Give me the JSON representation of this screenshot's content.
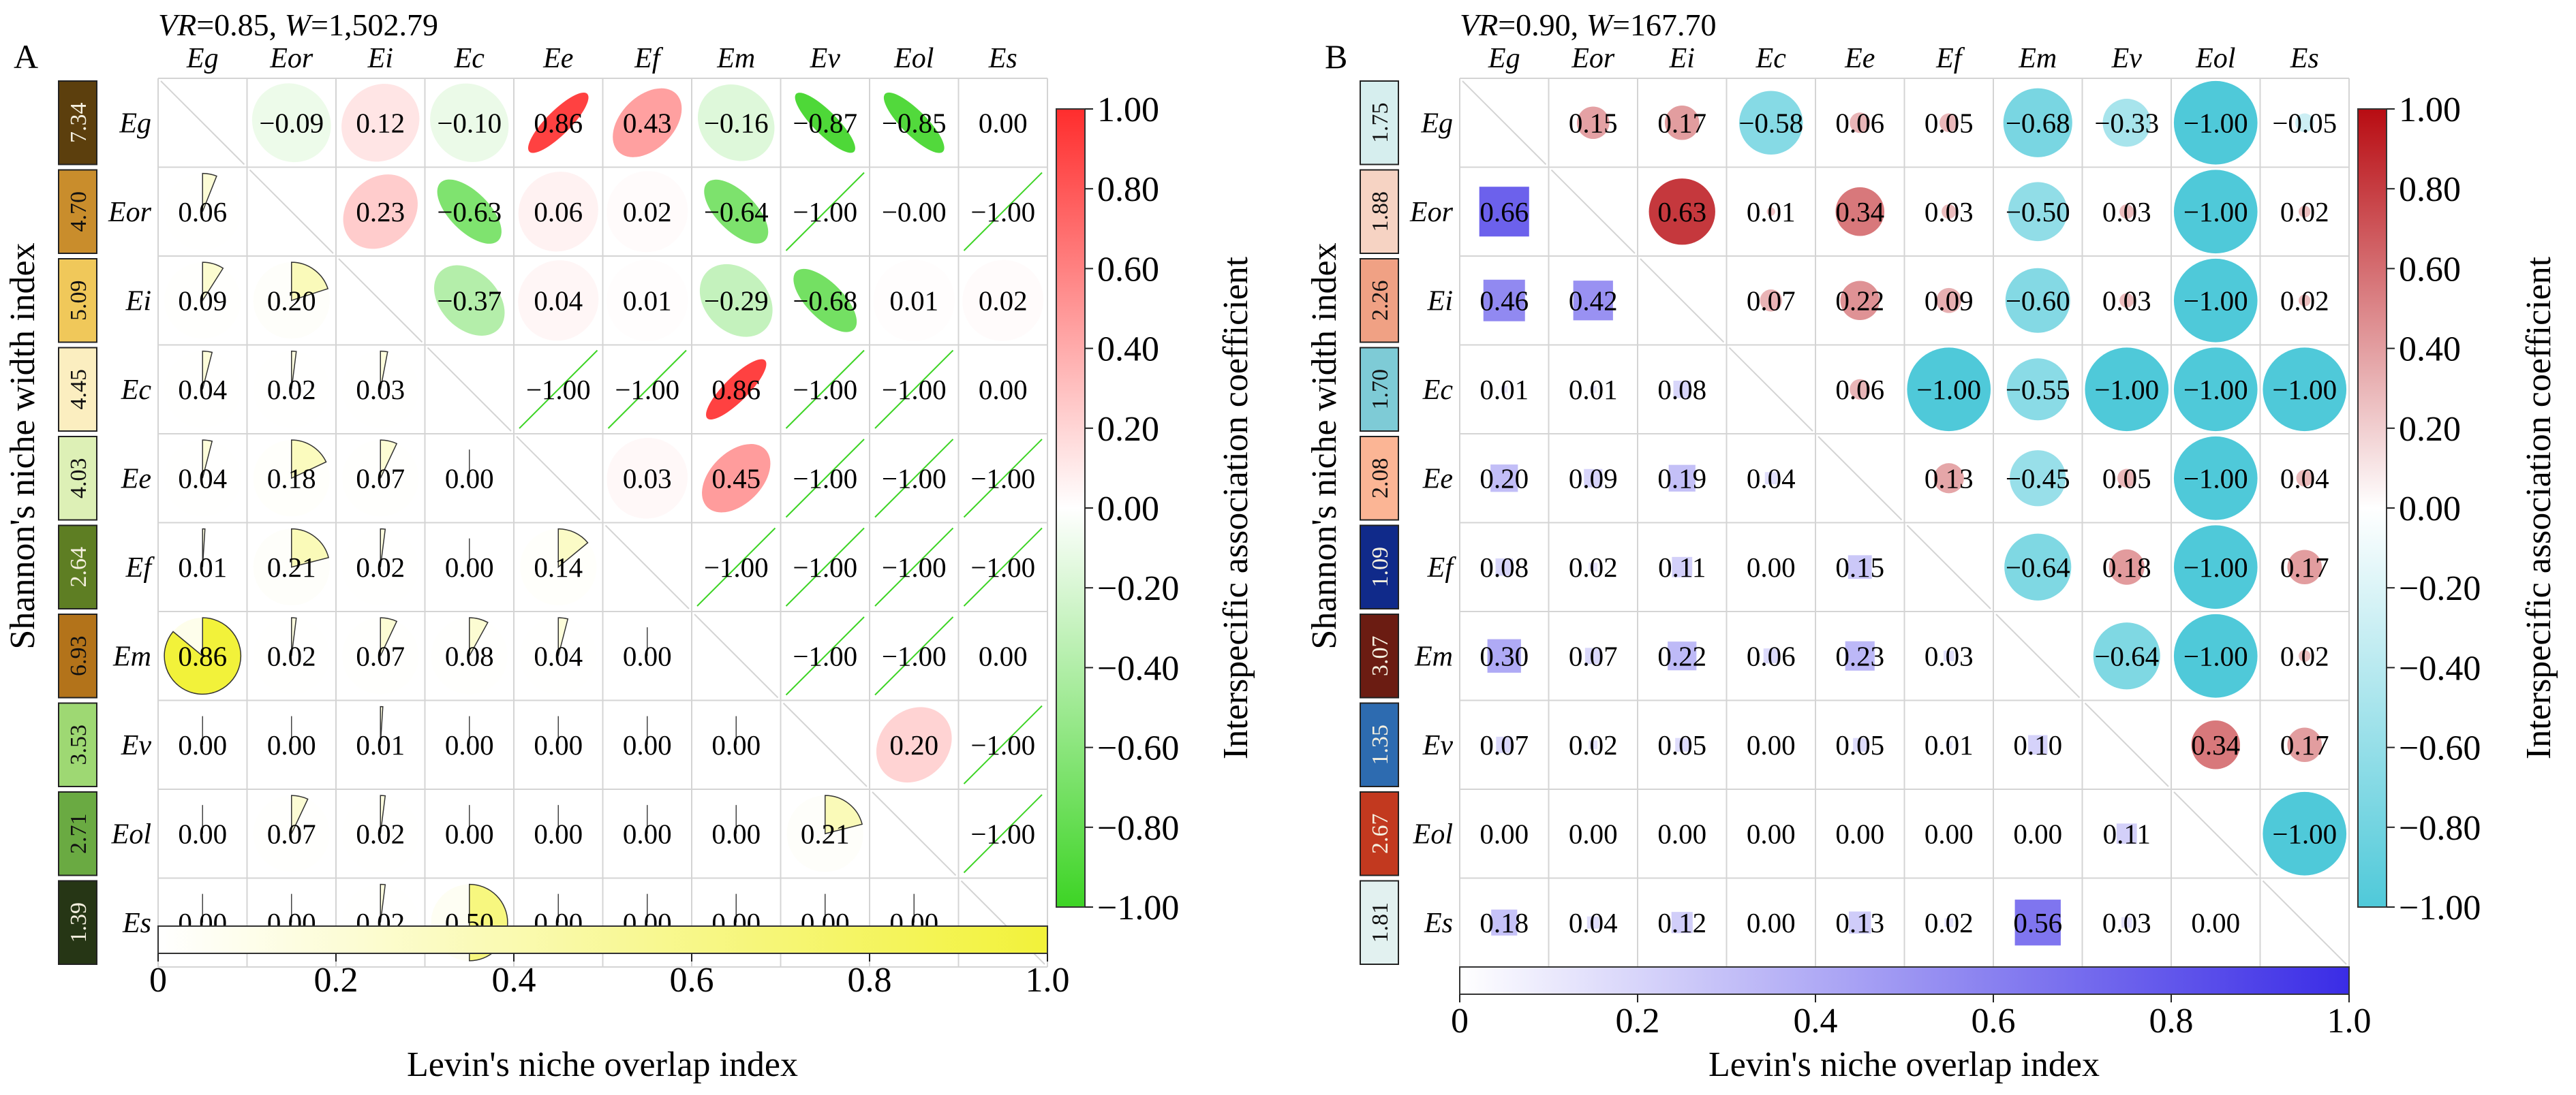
{
  "chart_data": [
    {
      "panel_label": "A",
      "type": "heatmap",
      "header": {
        "vr_label": "VR",
        "vr_value": "0.85",
        "w_label": "W",
        "w_value": "1,502.79"
      },
      "species": [
        "Eg",
        "Eor",
        "Ei",
        "Ec",
        "Ee",
        "Ef",
        "Em",
        "Ev",
        "Eol",
        "Es"
      ],
      "shannon": {
        "label": "Shannon's niche width index",
        "values": [
          "7.34",
          "4.70",
          "5.09",
          "4.45",
          "4.03",
          "2.64",
          "6.93",
          "3.53",
          "2.71",
          "1.39"
        ],
        "colors": [
          "#5c3f0d",
          "#c98d2c",
          "#f0c85a",
          "#fbeec0",
          "#ddf0b6",
          "#5e7e23",
          "#b3731a",
          "#9ed873",
          "#6aaa42",
          "#263615"
        ]
      },
      "association": {
        "label": "Interspecific association coefficient",
        "min": -1,
        "max": 1,
        "ticks": [
          "1.00",
          "0.80",
          "0.60",
          "0.40",
          "0.20",
          "0.00",
          "−0.20",
          "−0.40",
          "−0.60",
          "−0.80",
          "−1.00"
        ],
        "negative_color": "#3dd425",
        "positive_color": "#ff2d2d",
        "upper": [
          [
            "",
            "−0.09",
            "0.12",
            "−0.10",
            "0.86",
            "0.43",
            "−0.16",
            "−0.87",
            "−0.85",
            "0.00"
          ],
          [
            "",
            "",
            "0.23",
            "−0.63",
            "0.06",
            "0.02",
            "−0.64",
            "−1.00",
            "−0.00",
            "−1.00"
          ],
          [
            "",
            "",
            "",
            "−0.37",
            "0.04",
            "0.01",
            "−0.29",
            "−0.68",
            "0.01",
            "0.02"
          ],
          [
            "",
            "",
            "",
            "",
            "−1.00",
            "−1.00",
            "0.86",
            "−1.00",
            "−1.00",
            "0.00"
          ],
          [
            "",
            "",
            "",
            "",
            "",
            "0.03",
            "0.45",
            "−1.00",
            "−1.00",
            "−1.00"
          ],
          [
            "",
            "",
            "",
            "",
            "",
            "",
            "−1.00",
            "−1.00",
            "−1.00",
            "−1.00"
          ],
          [
            "",
            "",
            "",
            "",
            "",
            "",
            "",
            "−1.00",
            "−1.00",
            "0.00"
          ],
          [
            "",
            "",
            "",
            "",
            "",
            "",
            "",
            "",
            "0.20",
            "−1.00"
          ],
          [
            "",
            "",
            "",
            "",
            "",
            "",
            "",
            "",
            "",
            "−1.00"
          ],
          [
            "",
            "",
            "",
            "",
            "",
            "",
            "",
            "",
            "",
            ""
          ]
        ]
      },
      "overlap": {
        "label": "Levin's niche overlap index",
        "min": 0,
        "max": 1,
        "ticks": [
          "0",
          "0.2",
          "0.4",
          "0.6",
          "0.8",
          "1.0"
        ],
        "color": "#f2f23a",
        "lower": [
          [],
          [
            "0.06"
          ],
          [
            "0.09",
            "0.20"
          ],
          [
            "0.04",
            "0.02",
            "0.03"
          ],
          [
            "0.04",
            "0.18",
            "0.07",
            "0.00"
          ],
          [
            "0.01",
            "0.21",
            "0.02",
            "0.00",
            "0.14"
          ],
          [
            "0.86",
            "0.02",
            "0.07",
            "0.08",
            "0.04",
            "0.00"
          ],
          [
            "0.00",
            "0.00",
            "0.01",
            "0.00",
            "0.00",
            "0.00",
            "0.00"
          ],
          [
            "0.00",
            "0.07",
            "0.02",
            "0.00",
            "0.00",
            "0.00",
            "0.00",
            "0.21"
          ],
          [
            "0.00",
            "0.00",
            "0.02",
            "0.50",
            "0.00",
            "0.00",
            "0.00",
            "0.00",
            "0.00"
          ]
        ]
      }
    },
    {
      "panel_label": "B",
      "type": "heatmap",
      "header": {
        "vr_label": "VR",
        "vr_value": "0.90",
        "w_label": "W",
        "w_value": "167.70"
      },
      "species": [
        "Eg",
        "Eor",
        "Ei",
        "Ec",
        "Ee",
        "Ef",
        "Em",
        "Ev",
        "Eol",
        "Es"
      ],
      "shannon": {
        "label": "Shannon's niche width index",
        "values": [
          "1.75",
          "1.88",
          "2.26",
          "1.70",
          "2.08",
          "1.09",
          "3.07",
          "1.35",
          "2.67",
          "1.81"
        ],
        "colors": [
          "#d6eeee",
          "#f6d3c3",
          "#f0a184",
          "#7ecbd6",
          "#fbb595",
          "#102a8a",
          "#6b1c12",
          "#2d6bb0",
          "#c2391f",
          "#e2f1f0"
        ]
      },
      "association": {
        "label": "Interspecific association coefficient",
        "min": -1,
        "max": 1,
        "ticks": [
          "1.00",
          "0.80",
          "0.60",
          "0.40",
          "0.20",
          "0.00",
          "−0.20",
          "−0.40",
          "−0.60",
          "−0.80",
          "−1.00"
        ],
        "negative_color": "#4fc9d9",
        "positive_color": "#b80c12",
        "upper": [
          [
            "",
            "0.15",
            "0.17",
            "−0.58",
            "0.06",
            "0.05",
            "−0.68",
            "−0.33",
            "−1.00",
            "−0.05"
          ],
          [
            "",
            "",
            "0.63",
            "0.01",
            "0.34",
            "0.03",
            "−0.50",
            "0.03",
            "−1.00",
            "0.02"
          ],
          [
            "",
            "",
            "",
            "0.07",
            "0.22",
            "0.09",
            "−0.60",
            "0.03",
            "−1.00",
            "0.02"
          ],
          [
            "",
            "",
            "",
            "",
            "0.06",
            "−1.00",
            "−0.55",
            "−1.00",
            "−1.00",
            "−1.00"
          ],
          [
            "",
            "",
            "",
            "",
            "",
            "0.13",
            "−0.45",
            "0.05",
            "−1.00",
            "0.04"
          ],
          [
            "",
            "",
            "",
            "",
            "",
            "",
            "−0.64",
            "0.18",
            "−1.00",
            "0.17"
          ],
          [
            "",
            "",
            "",
            "",
            "",
            "",
            "",
            "−0.64",
            "−1.00",
            "0.02"
          ],
          [
            "",
            "",
            "",
            "",
            "",
            "",
            "",
            "",
            "0.34",
            "0.17"
          ],
          [
            "",
            "",
            "",
            "",
            "",
            "",
            "",
            "",
            "",
            "−1.00"
          ],
          [
            "",
            "",
            "",
            "",
            "",
            "",
            "",
            "",
            "",
            ""
          ]
        ]
      },
      "overlap": {
        "label": "Levin's niche overlap index",
        "min": 0,
        "max": 1,
        "ticks": [
          "0",
          "0.2",
          "0.4",
          "0.6",
          "0.8",
          "1.0"
        ],
        "color": "#3a2ce6",
        "lower": [
          [],
          [
            "0.66"
          ],
          [
            "0.46",
            "0.42"
          ],
          [
            "0.01",
            "0.01",
            "0.08"
          ],
          [
            "0.20",
            "0.09",
            "0.19",
            "0.04"
          ],
          [
            "0.08",
            "0.02",
            "0.11",
            "0.00",
            "0.15"
          ],
          [
            "0.30",
            "0.07",
            "0.22",
            "0.06",
            "0.23",
            "0.03"
          ],
          [
            "0.07",
            "0.02",
            "0.05",
            "0.00",
            "0.05",
            "0.01",
            "0.10"
          ],
          [
            "0.00",
            "0.00",
            "0.00",
            "0.00",
            "0.00",
            "0.00",
            "0.00",
            "0.11"
          ],
          [
            "0.18",
            "0.04",
            "0.12",
            "0.00",
            "0.13",
            "0.02",
            "0.56",
            "0.03",
            "0.00"
          ]
        ]
      }
    }
  ]
}
